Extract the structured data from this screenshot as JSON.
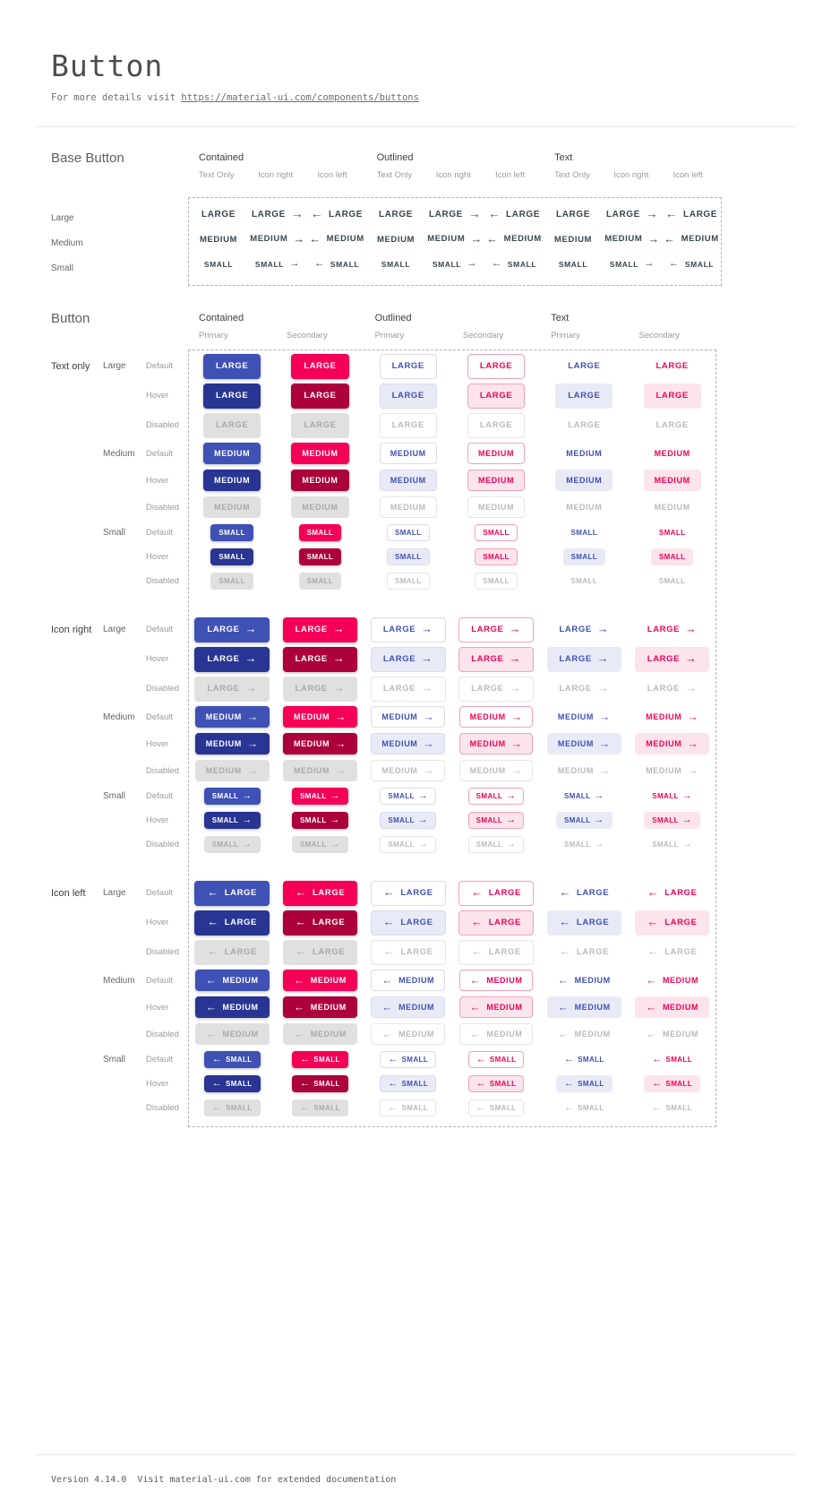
{
  "page": {
    "title": "Button",
    "subtitle_prefix": "For more details visit ",
    "subtitle_link": "https://material-ui.com/components/buttons",
    "footer_text": "Version 4.14.0  Visit material-ui.com for extended documentation"
  },
  "base_section": {
    "title": "Base Button",
    "group_headers": [
      "Contained",
      "Outlined",
      "Text"
    ],
    "sub_headers": [
      "Text Only",
      "Icon right",
      "Icon left"
    ],
    "icon_variants": [
      "none",
      "right",
      "left"
    ],
    "rows": [
      {
        "label": "Large",
        "size": "large",
        "text": "LARGE"
      },
      {
        "label": "Medium",
        "size": "medium",
        "text": "MEDIUM"
      },
      {
        "label": "Small",
        "size": "small",
        "text": "SMALL"
      }
    ]
  },
  "button_section": {
    "title": "Button",
    "group_headers": [
      "Contained",
      "Outlined",
      "Text"
    ],
    "sub_headers": [
      "Primary",
      "Secondary"
    ],
    "variants": [
      "contained-primary",
      "contained-secondary",
      "outlined-primary",
      "outlined-secondary",
      "text-primary",
      "text-secondary"
    ],
    "icon_groups": [
      {
        "label": "Text only",
        "icon": "none"
      },
      {
        "label": "Icon right",
        "icon": "right"
      },
      {
        "label": "Icon left",
        "icon": "left"
      }
    ],
    "sizes": [
      {
        "label": "Large",
        "size": "large",
        "text": "LARGE"
      },
      {
        "label": "Medium",
        "size": "medium",
        "text": "MEDIUM"
      },
      {
        "label": "Small",
        "size": "small",
        "text": "SMALL"
      }
    ],
    "states": [
      {
        "label": "Default",
        "state": "default"
      },
      {
        "label": "Hover",
        "state": "hover"
      },
      {
        "label": "Disabled",
        "state": "disabled"
      }
    ]
  },
  "icons": {
    "arrow_right": "→",
    "arrow_left": "←"
  },
  "colors": {
    "primary": "#3F51B5",
    "primary_hover": "#283593",
    "secondary": "#F50057",
    "secondary_hover": "#AB003C",
    "primary_tint": "#E8EAF6",
    "secondary_tint": "#FCE4EC",
    "outlined_primary_border": "#D9DCEE",
    "outlined_secondary_border": "#F5A0BB",
    "disabled_bg": "#E0E0E0",
    "disabled_text": "#A9A9A9",
    "base_button_text": "#37474F"
  }
}
